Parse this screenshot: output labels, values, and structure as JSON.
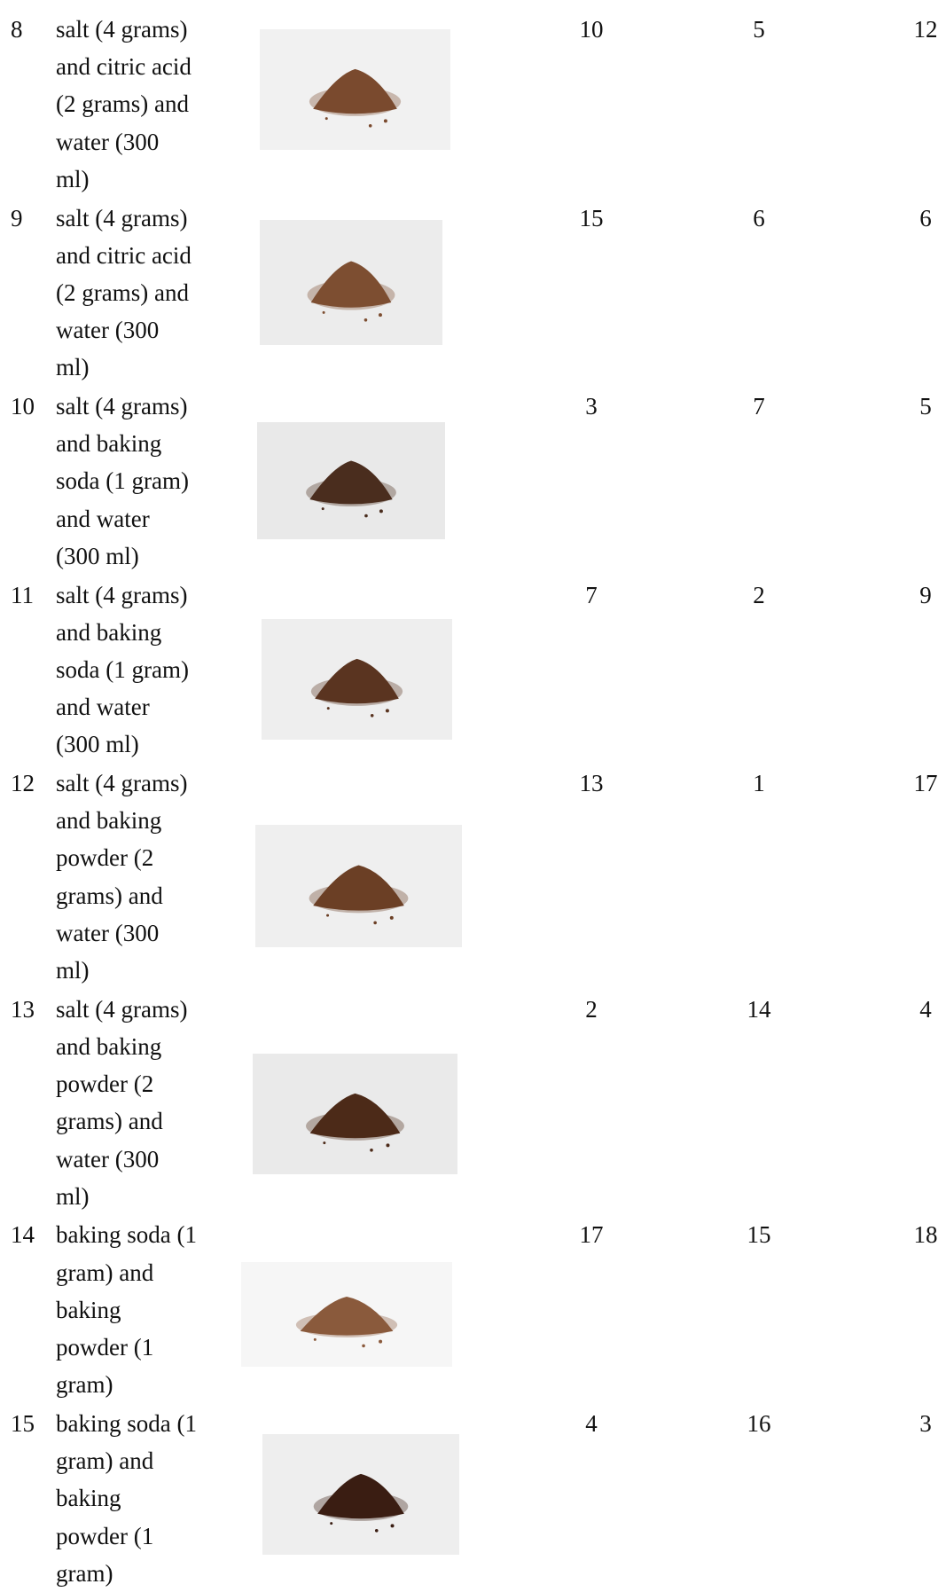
{
  "table": {
    "rows": [
      {
        "id": "8",
        "text": [
          "salt (4 grams)",
          "and citric acid",
          "(2 grams) and",
          "water (300",
          "ml)"
        ],
        "values": [
          "10",
          "5",
          "12"
        ]
      },
      {
        "id": "9",
        "text": [
          "salt (4 grams)",
          "and citric acid",
          "(2 grams) and",
          "water (300",
          "ml)"
        ],
        "values": [
          "15",
          "6",
          "6"
        ]
      },
      {
        "id": "10",
        "text": [
          "salt (4 grams)",
          "and baking",
          "soda (1 gram)",
          "and water",
          "(300 ml)"
        ],
        "values": [
          "3",
          "7",
          "5"
        ]
      },
      {
        "id": "11",
        "text": [
          "salt (4 grams)",
          "and baking",
          "soda (1 gram)",
          "and water",
          "(300 ml)"
        ],
        "values": [
          "7",
          "2",
          "9"
        ]
      },
      {
        "id": "12",
        "text": [
          "salt (4 grams)",
          "and baking",
          "powder (2",
          "grams) and",
          "water (300",
          "ml)"
        ],
        "values": [
          "13",
          "1",
          "17"
        ]
      },
      {
        "id": "13",
        "text": [
          "salt (4 grams)",
          "and baking",
          "powder (2",
          "grams) and",
          "water (300",
          "ml)"
        ],
        "values": [
          "2",
          "14",
          "4"
        ]
      },
      {
        "id": "14",
        "text": [
          "baking soda (1",
          "gram) and",
          "baking",
          "powder (1",
          "gram)"
        ],
        "values": [
          "17",
          "15",
          "18"
        ]
      },
      {
        "id": "15",
        "text": [
          "baking soda (1",
          "gram) and",
          "baking",
          "powder (1",
          "gram)"
        ],
        "values": [
          "4",
          "16",
          "3"
        ]
      }
    ]
  }
}
